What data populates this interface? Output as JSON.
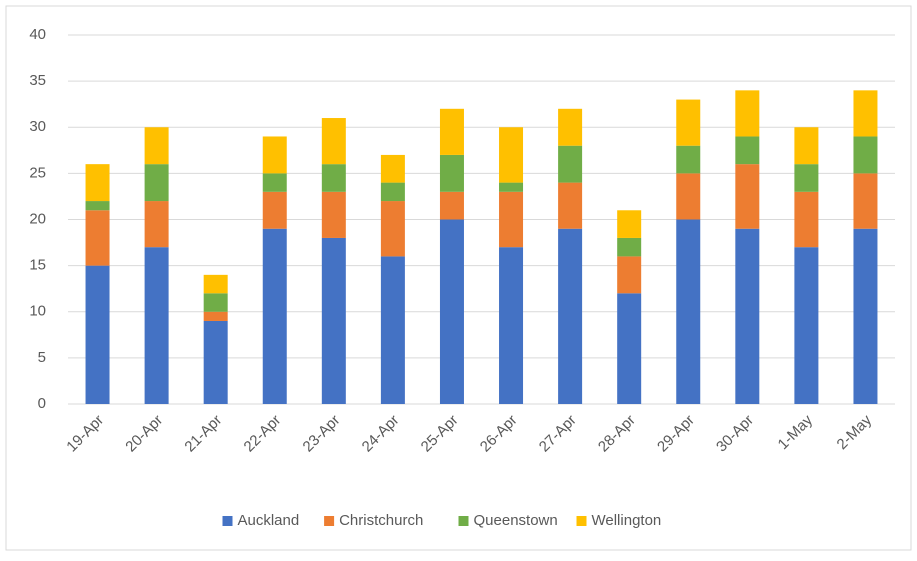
{
  "chart_data": {
    "type": "stacked_bar",
    "categories": [
      "19-Apr",
      "20-Apr",
      "21-Apr",
      "22-Apr",
      "23-Apr",
      "24-Apr",
      "25-Apr",
      "26-Apr",
      "27-Apr",
      "28-Apr",
      "29-Apr",
      "30-Apr",
      "1-May",
      "2-May"
    ],
    "series": [
      {
        "name": "Auckland",
        "color": "#4472c4",
        "values": [
          15,
          17,
          9,
          19,
          18,
          16,
          20,
          17,
          19,
          12,
          20,
          19,
          17,
          19
        ]
      },
      {
        "name": "Christchurch",
        "color": "#ed7d31",
        "values": [
          6,
          5,
          1,
          4,
          5,
          6,
          3,
          6,
          5,
          4,
          5,
          7,
          6,
          6
        ]
      },
      {
        "name": "Queenstown",
        "color": "#70ad47",
        "values": [
          1,
          4,
          2,
          2,
          3,
          2,
          4,
          1,
          4,
          2,
          3,
          3,
          3,
          4
        ]
      },
      {
        "name": "Wellington",
        "color": "#ffc000",
        "values": [
          4,
          4,
          2,
          4,
          5,
          3,
          5,
          6,
          4,
          3,
          5,
          5,
          4,
          5
        ]
      }
    ],
    "ylim": [
      0,
      40
    ],
    "yticks": [
      0,
      5,
      10,
      15,
      20,
      25,
      30,
      35,
      40
    ],
    "grid": true,
    "legend": "bottom"
  }
}
